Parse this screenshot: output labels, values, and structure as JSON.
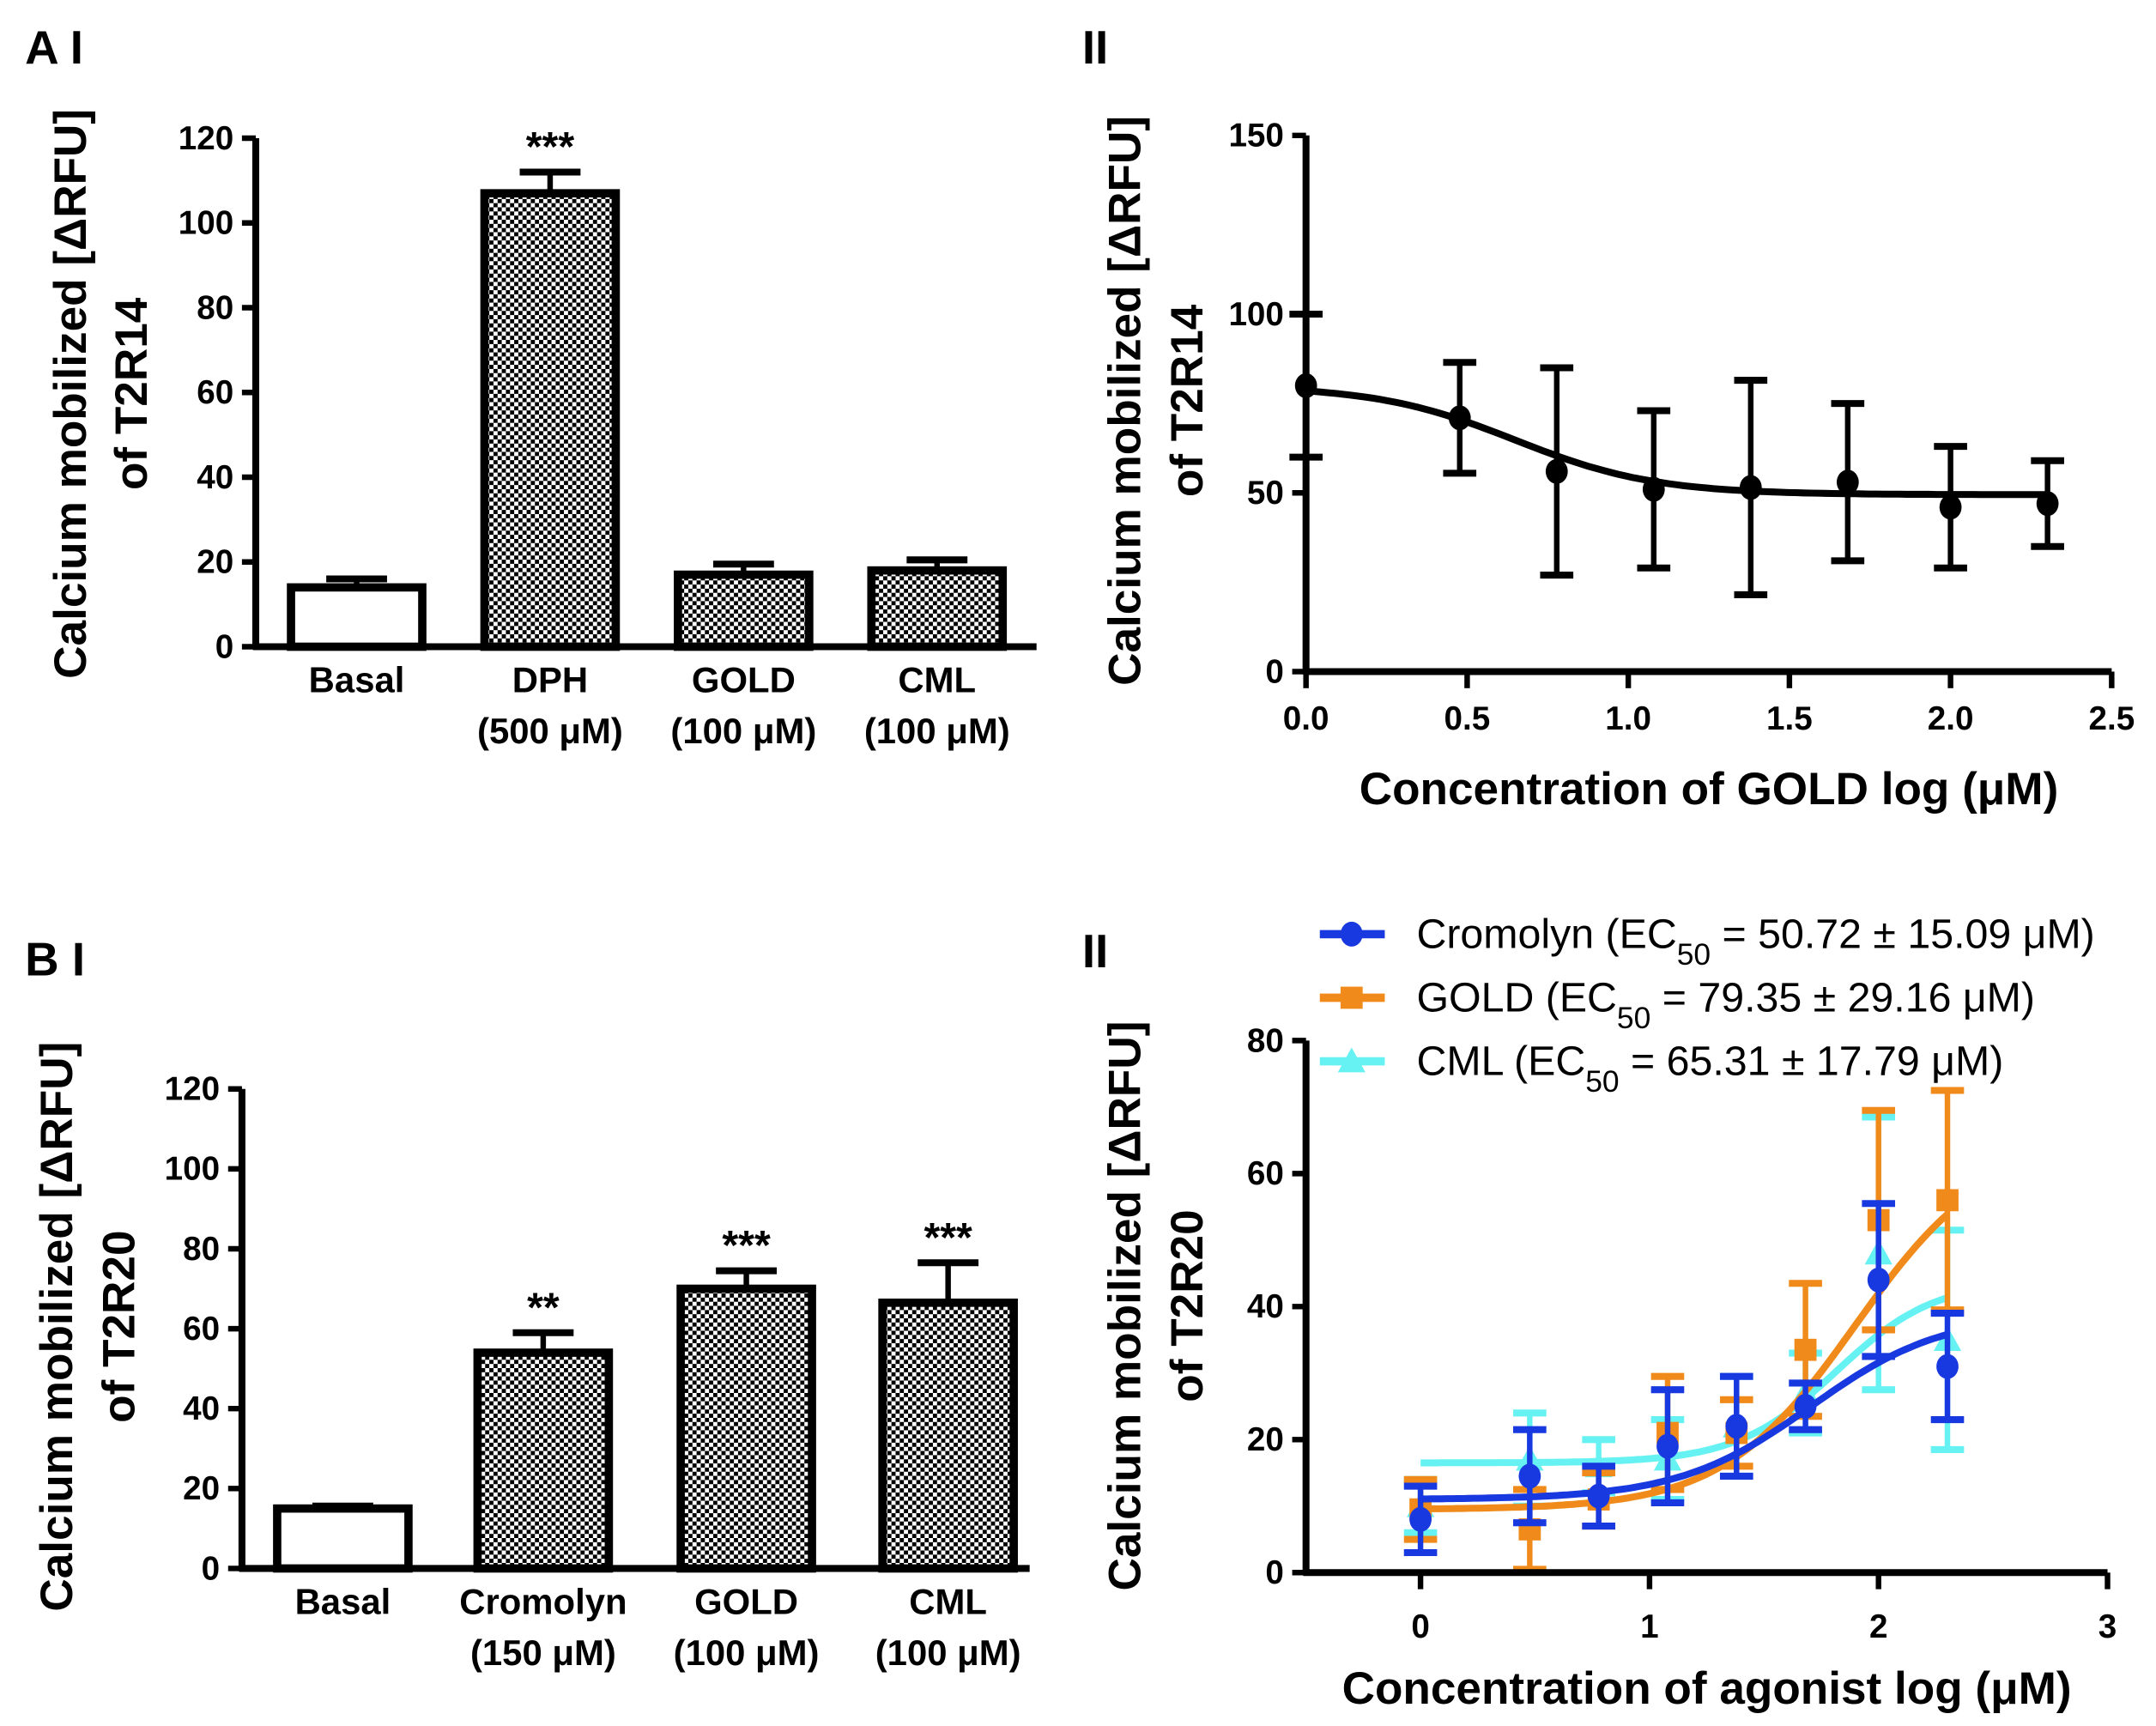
{
  "panels": {
    "a1": "A I",
    "a2": "II",
    "b1": "B I",
    "b2": "II"
  },
  "colors": {
    "cromolyn": "#1838e0",
    "gold": "#f08a1a",
    "cml": "#66f2f2",
    "axis": "#000000"
  },
  "chart_data": [
    {
      "type": "bar",
      "panel": "A I",
      "ylabel": [
        "Calcium mobilized [ΔRFU]",
        "of  T2R14"
      ],
      "categories": [
        [
          "Basal",
          ""
        ],
        [
          "DPH",
          "(500 μM)"
        ],
        [
          "GOLD",
          "(100 μM)"
        ],
        [
          "CML",
          "(100 μM)"
        ]
      ],
      "values": [
        14,
        107,
        17,
        18
      ],
      "errors": [
        2,
        5,
        2.5,
        2.5
      ],
      "fill": [
        "white",
        "checker",
        "checker",
        "checker"
      ],
      "significance": [
        "",
        "***",
        "",
        ""
      ],
      "ylim": [
        0,
        120
      ],
      "yticks": [
        "0",
        "20",
        "40",
        "60",
        "80",
        "100",
        "120"
      ]
    },
    {
      "type": "line",
      "panel": "II",
      "xlabel": "Concentration of GOLD log (μM)",
      "ylabel": [
        "Calcium mobilized [ΔRFU]",
        "of  T2R14"
      ],
      "xlim": [
        0,
        2.5
      ],
      "ylim": [
        0,
        150
      ],
      "xticks": [
        "0.0",
        "0.5",
        "1.0",
        "1.5",
        "2.0",
        "2.5"
      ],
      "yticks": [
        "0",
        "50",
        "100",
        "150"
      ],
      "series": [
        {
          "marker": "circle",
          "color": "#000000",
          "x": [
            0,
            0.477,
            0.778,
            1.079,
            1.38,
            1.681,
            2.0,
            2.301
          ],
          "y": [
            80,
            71,
            56,
            51,
            51.5,
            53,
            46,
            47
          ],
          "error": [
            20,
            15.5,
            29,
            22,
            30,
            22,
            17,
            12
          ],
          "fit": {
            "top": 80,
            "bottom": 49.5,
            "logEC50": 0.65,
            "hill": -2
          }
        }
      ]
    },
    {
      "type": "bar",
      "panel": "B I",
      "ylabel": [
        "Calcium mobilized [ΔRFU]",
        "of  T2R20"
      ],
      "categories": [
        [
          "Basal",
          ""
        ],
        [
          "Cromolyn",
          "(150 μM)"
        ],
        [
          "GOLD",
          "(100 μM)"
        ],
        [
          "CML",
          "(100 μM)"
        ]
      ],
      "values": [
        15,
        54,
        70,
        66.5
      ],
      "errors": [
        0.6,
        5,
        4.5,
        10
      ],
      "fill": [
        "white",
        "checker",
        "checker",
        "checker"
      ],
      "significance": [
        "",
        "**",
        "***",
        "***"
      ],
      "ylim": [
        0,
        120
      ],
      "yticks": [
        "0",
        "20",
        "40",
        "60",
        "80",
        "100",
        "120"
      ]
    },
    {
      "type": "line",
      "panel": "II",
      "xlabel": "Concentration of agonist log (μM)",
      "ylabel": [
        "Calcium mobilized [ΔRFU]",
        "of  T2R20"
      ],
      "xlim": [
        -0.5,
        3
      ],
      "ylim": [
        0,
        80
      ],
      "xticks": [
        "0",
        "1",
        "2",
        "3"
      ],
      "yticks": [
        "0",
        "20",
        "40",
        "60",
        "80"
      ],
      "legend": "top",
      "series": [
        {
          "name": [
            "Cromolyn (EC",
            "50",
            " = 50.72 ± 15.09 μM)"
          ],
          "marker": "circle",
          "color": "#1838e0",
          "x": [
            0,
            0.477,
            0.778,
            1.079,
            1.38,
            1.681,
            2.0,
            2.301
          ],
          "y": [
            8,
            14.5,
            11.5,
            19,
            22,
            25,
            44,
            31
          ],
          "error": [
            5,
            7,
            4.5,
            8.5,
            7.5,
            3.5,
            11.5,
            8
          ],
          "fit": {
            "top": 39,
            "bottom": 11,
            "logEC50": 1.705,
            "hill": 1.5
          }
        },
        {
          "name": [
            "GOLD (EC",
            "50",
            " = 79.35 ± 29.16 μM)"
          ],
          "marker": "square",
          "color": "#f08a1a",
          "x": [
            0,
            0.477,
            0.778,
            1.079,
            1.38,
            1.681,
            2.0,
            2.301
          ],
          "y": [
            9.5,
            6.5,
            11,
            21,
            21,
            33.5,
            53,
            56
          ],
          "error": [
            4.5,
            6,
            4,
            8.5,
            5,
            10,
            16.5,
            16.5
          ],
          "fit": {
            "top": 65,
            "bottom": 9.5,
            "logEC50": 1.9,
            "hill": 1.5
          }
        },
        {
          "name": [
            "CML (EC",
            "50",
            " = 65.31 ± 17.79 μM)"
          ],
          "marker": "triangle",
          "color": "#66f2f2",
          "x": [
            0,
            0.477,
            0.778,
            1.079,
            1.38,
            1.681,
            2.0,
            2.301
          ],
          "y": [
            10,
            17,
            16,
            17,
            22,
            27,
            48,
            35
          ],
          "error": [
            4,
            7,
            4,
            6,
            7.5,
            6,
            20.5,
            16.5
          ],
          "fit": {
            "top": 44,
            "bottom": 16.5,
            "logEC50": 1.815,
            "hill": 2
          }
        }
      ]
    }
  ]
}
